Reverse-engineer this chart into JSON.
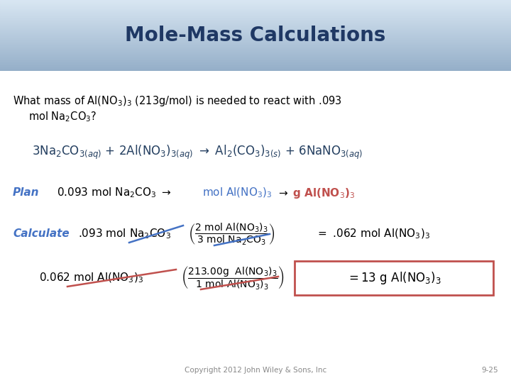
{
  "title": "Mole-Mass Calculations",
  "title_color": "#1F3864",
  "title_fontsize": 20,
  "slide_bg": "#FFFFFF",
  "copyright": "Copyright 2012 John Wiley & Sons, Inc",
  "page_num": "9-25",
  "plan_color": "#4472C4",
  "calc_color": "#4472C4",
  "highlight_red": "#C0504D",
  "highlight_blue": "#4472C4",
  "box_color": "#C0504D",
  "header_top": "#AABDD4",
  "header_bottom": "#D8E4EE",
  "eq_color": "#243F60"
}
